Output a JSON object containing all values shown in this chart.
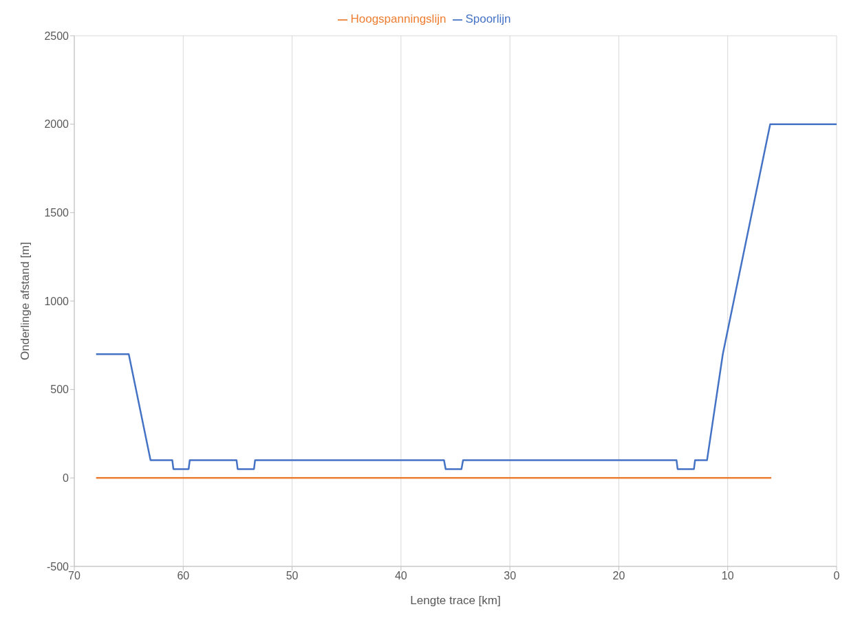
{
  "chart_data": {
    "type": "line",
    "xlabel": "Lengte trace [km]",
    "ylabel": "Onderlinge afstand [m]",
    "xlim": [
      70,
      0
    ],
    "xticks": [
      70,
      60,
      50,
      40,
      30,
      20,
      10,
      0
    ],
    "ylim": [
      -500,
      2500
    ],
    "yticks": [
      -500,
      0,
      500,
      1000,
      1500,
      2000,
      2500
    ],
    "grid": true,
    "legend": "top",
    "marker": "none",
    "line_style": "solid",
    "series": [
      {
        "name": "Spoorlijn",
        "color": "#4472c4",
        "x": [
          68,
          65,
          63,
          61,
          60.9,
          59.5,
          59.4,
          55.1,
          55,
          53.5,
          53.4,
          36.05,
          35.9,
          34.45,
          34.3,
          14.7,
          14.6,
          13.1,
          13,
          11.9,
          10.45,
          6.1,
          0
        ],
        "values": [
          700,
          700,
          100,
          100,
          50,
          50,
          100,
          100,
          50,
          50,
          100,
          100,
          50,
          50,
          100,
          100,
          50,
          50,
          100,
          100,
          700,
          2000,
          2000
        ]
      },
      {
        "name": "Hoogspanningslijn",
        "color": "#ed7d31",
        "x": [
          68,
          6
        ],
        "values": [
          0,
          0
        ]
      }
    ]
  }
}
